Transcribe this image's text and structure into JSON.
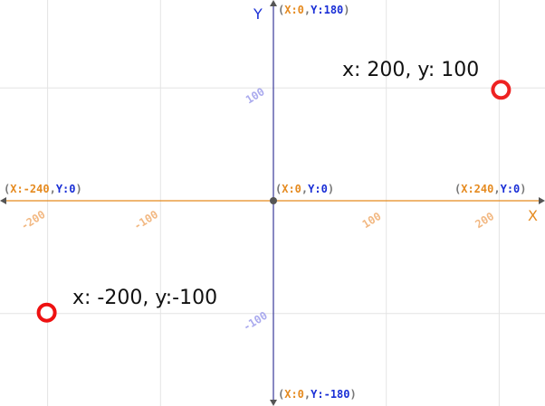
{
  "diagram": {
    "axes": {
      "x_label": "X",
      "y_label": "Y",
      "x_color": "#e58a1f",
      "y_color": "#1a2fd6",
      "grid_color": "#e4e4e4",
      "x_ticks": [
        {
          "value": -200,
          "label": "-200"
        },
        {
          "value": -100,
          "label": "-100"
        },
        {
          "value": 100,
          "label": "100"
        },
        {
          "value": 200,
          "label": "200"
        }
      ],
      "y_ticks": [
        {
          "value": 100,
          "label": "100"
        },
        {
          "value": -100,
          "label": "-100"
        }
      ]
    },
    "edge_labels": {
      "top": {
        "x": "X:0",
        "y": "Y:180"
      },
      "bottom": {
        "x": "X:0",
        "y": "Y:-180"
      },
      "left": {
        "x": "X:-240",
        "y": "Y:0"
      },
      "right": {
        "x": "X:240",
        "y": "Y:0"
      },
      "origin": {
        "x": "X:0",
        "y": "Y:0"
      }
    },
    "points": [
      {
        "x": 200,
        "y": 100,
        "label": "x: 200, y: 100",
        "color": "#ee2222"
      },
      {
        "x": -200,
        "y": -100,
        "label": "x: -200, y:-100",
        "color": "#ee1111"
      }
    ]
  }
}
